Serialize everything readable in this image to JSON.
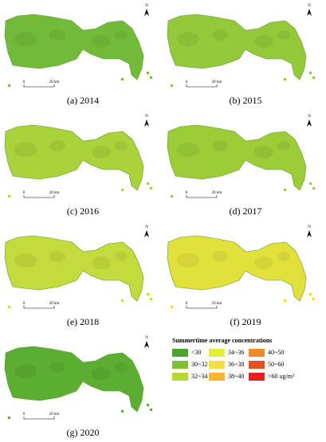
{
  "panels": [
    {
      "caption": "(a) 2014",
      "color": "#72ba3a"
    },
    {
      "caption": "(b) 2015",
      "color": "#93c93a"
    },
    {
      "caption": "(c) 2016",
      "color": "#a9d23b"
    },
    {
      "caption": "(d) 2017",
      "color": "#9ccd38"
    },
    {
      "caption": "(e) 2018",
      "color": "#c3db3c"
    },
    {
      "caption": "(f) 2019",
      "color": "#e2e13c"
    },
    {
      "caption": "(g) 2020",
      "color": "#5cae32"
    }
  ],
  "scale_bar": {
    "start": "0",
    "end": "20 km"
  },
  "north": "N",
  "legend": {
    "title": "Summertime average concentrations",
    "items": [
      {
        "label": "<30",
        "color": "#4aa52a"
      },
      {
        "label": "30~32",
        "color": "#7dc12e"
      },
      {
        "label": "32~34",
        "color": "#b5d932"
      },
      {
        "label": "34~36",
        "color": "#e6ee3a"
      },
      {
        "label": "36~38",
        "color": "#f6df3c"
      },
      {
        "label": "38~40",
        "color": "#f5b82a"
      },
      {
        "label": "40~50",
        "color": "#f08a24"
      },
      {
        "label": "50~60",
        "color": "#e8501a"
      },
      {
        "label": ">60 ug/m³",
        "color": "#e81f1f"
      }
    ]
  }
}
